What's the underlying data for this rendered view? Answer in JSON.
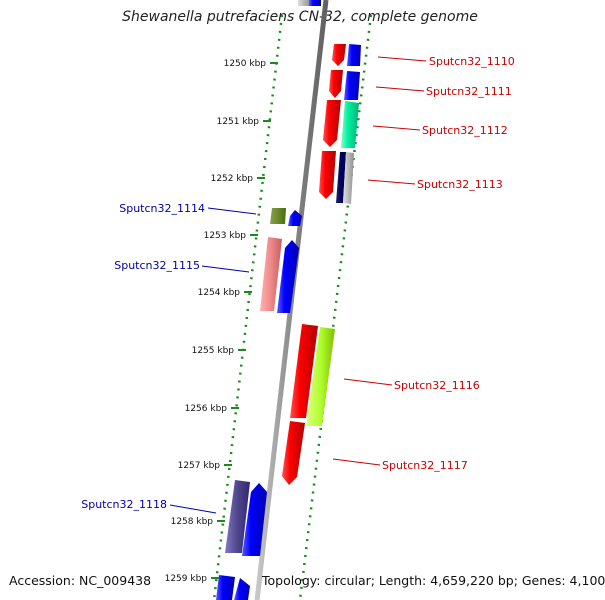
{
  "title": "Shewanella putrefaciens CN-32, complete genome",
  "footer": {
    "accession": "Accession: NC_009438",
    "topology": "Topology: circular; Length: 4,659,220 bp; Genes: 4,100"
  },
  "colors": {
    "backbone": "#909090",
    "tick": "#1a8a1a",
    "label_forward": "#cc0000",
    "label_reverse": "#0000aa",
    "scale_text": "#111111"
  },
  "scale": {
    "unit": "kbp",
    "ticks": [
      1250,
      1251,
      1252,
      1253,
      1254,
      1255,
      1256,
      1257,
      1258,
      1259
    ]
  },
  "genes": [
    {
      "id": "Sputcn32_1110",
      "strand": "forward"
    },
    {
      "id": "Sputcn32_1111",
      "strand": "forward"
    },
    {
      "id": "Sputcn32_1112",
      "strand": "forward"
    },
    {
      "id": "Sputcn32_1113",
      "strand": "forward"
    },
    {
      "id": "Sputcn32_1114",
      "strand": "reverse"
    },
    {
      "id": "Sputcn32_1115",
      "strand": "reverse"
    },
    {
      "id": "Sputcn32_1116",
      "strand": "forward"
    },
    {
      "id": "Sputcn32_1117",
      "strand": "forward"
    },
    {
      "id": "Sputcn32_1118",
      "strand": "reverse"
    }
  ]
}
